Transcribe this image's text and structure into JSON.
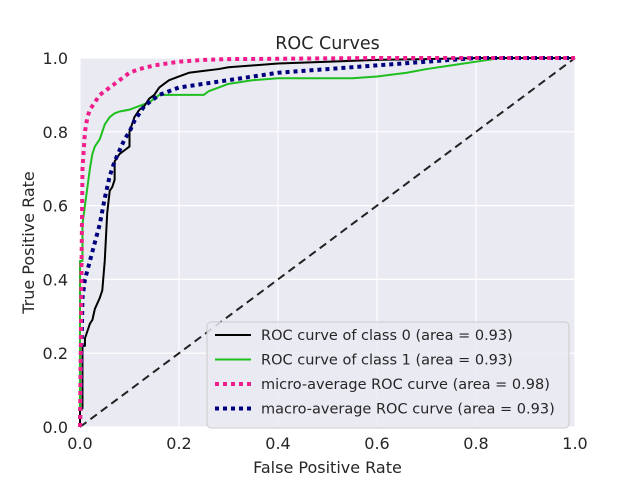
{
  "chart_data": {
    "type": "line",
    "title": "ROC Curves",
    "xlabel": "False Positive Rate",
    "ylabel": "True Positive Rate",
    "xlim": [
      0.0,
      1.0
    ],
    "ylim": [
      0.0,
      1.0
    ],
    "xticks": [
      "0.0",
      "0.2",
      "0.4",
      "0.6",
      "0.8",
      "1.0"
    ],
    "yticks": [
      "0.0",
      "0.2",
      "0.4",
      "0.6",
      "0.8",
      "1.0"
    ],
    "grid": true,
    "background": "#eaeaf2",
    "legend_position": "lower-right",
    "series": [
      {
        "name": "ROC curve of class 0 (area = 0.93)",
        "color": "#000000",
        "style": "solid",
        "x": [
          0.0,
          0.0,
          0.005,
          0.005,
          0.01,
          0.01,
          0.015,
          0.02,
          0.025,
          0.03,
          0.04,
          0.045,
          0.05,
          0.055,
          0.06,
          0.065,
          0.07,
          0.07,
          0.08,
          0.09,
          0.1,
          0.1,
          0.11,
          0.12,
          0.13,
          0.14,
          0.15,
          0.16,
          0.17,
          0.18,
          0.2,
          0.22,
          0.25,
          0.28,
          0.3,
          0.35,
          0.4,
          0.5,
          0.6,
          0.7,
          0.8,
          0.9,
          1.0
        ],
        "y": [
          0.0,
          0.05,
          0.05,
          0.22,
          0.22,
          0.24,
          0.26,
          0.28,
          0.29,
          0.32,
          0.35,
          0.37,
          0.45,
          0.58,
          0.64,
          0.65,
          0.67,
          0.72,
          0.74,
          0.75,
          0.76,
          0.8,
          0.84,
          0.86,
          0.87,
          0.89,
          0.9,
          0.92,
          0.93,
          0.94,
          0.95,
          0.96,
          0.965,
          0.97,
          0.975,
          0.98,
          0.985,
          0.99,
          0.995,
          0.997,
          1.0,
          1.0,
          1.0
        ]
      },
      {
        "name": "ROC curve of class 1 (area = 0.93)",
        "color": "#1fbf1f",
        "style": "solid",
        "x": [
          0.0,
          0.0,
          0.005,
          0.005,
          0.01,
          0.015,
          0.02,
          0.025,
          0.03,
          0.035,
          0.04,
          0.045,
          0.05,
          0.06,
          0.07,
          0.08,
          0.1,
          0.12,
          0.14,
          0.16,
          0.18,
          0.2,
          0.22,
          0.25,
          0.26,
          0.28,
          0.3,
          0.35,
          0.4,
          0.45,
          0.5,
          0.55,
          0.6,
          0.63,
          0.66,
          0.7,
          0.75,
          0.8,
          0.85,
          0.9,
          0.95,
          1.0
        ],
        "y": [
          0.0,
          0.45,
          0.45,
          0.55,
          0.6,
          0.65,
          0.7,
          0.74,
          0.76,
          0.77,
          0.78,
          0.8,
          0.82,
          0.84,
          0.85,
          0.855,
          0.86,
          0.87,
          0.88,
          0.9,
          0.9,
          0.9,
          0.9,
          0.9,
          0.91,
          0.92,
          0.93,
          0.94,
          0.945,
          0.945,
          0.945,
          0.945,
          0.95,
          0.955,
          0.96,
          0.97,
          0.98,
          0.99,
          1.0,
          1.0,
          1.0,
          1.0
        ]
      },
      {
        "name": "micro-average ROC curve (area = 0.98)",
        "color": "#f01e8c",
        "style": "dotted",
        "x": [
          0.0,
          0.005,
          0.01,
          0.015,
          0.02,
          0.03,
          0.04,
          0.05,
          0.06,
          0.07,
          0.08,
          0.1,
          0.12,
          0.15,
          0.2,
          0.25,
          0.3,
          0.4,
          0.5,
          0.6,
          0.8,
          1.0
        ],
        "y": [
          0.0,
          0.7,
          0.8,
          0.84,
          0.86,
          0.88,
          0.9,
          0.91,
          0.92,
          0.93,
          0.94,
          0.96,
          0.97,
          0.98,
          0.99,
          0.995,
          0.997,
          0.998,
          0.999,
          1.0,
          1.0,
          1.0
        ]
      },
      {
        "name": "macro-average ROC curve (area = 0.93)",
        "color": "#00007f",
        "style": "dotted",
        "x": [
          0.0,
          0.005,
          0.01,
          0.02,
          0.03,
          0.04,
          0.05,
          0.06,
          0.07,
          0.08,
          0.09,
          0.1,
          0.11,
          0.12,
          0.13,
          0.14,
          0.15,
          0.16,
          0.18,
          0.2,
          0.25,
          0.3,
          0.35,
          0.4,
          0.5,
          0.6,
          0.7,
          0.8,
          0.9,
          1.0
        ],
        "y": [
          0.0,
          0.35,
          0.4,
          0.45,
          0.5,
          0.55,
          0.62,
          0.68,
          0.72,
          0.75,
          0.78,
          0.8,
          0.83,
          0.85,
          0.87,
          0.88,
          0.89,
          0.9,
          0.91,
          0.92,
          0.93,
          0.94,
          0.95,
          0.96,
          0.97,
          0.98,
          0.99,
          1.0,
          1.0,
          1.0
        ]
      },
      {
        "name": "",
        "color": "#222222",
        "style": "dashed",
        "x": [
          0.0,
          1.0
        ],
        "y": [
          0.0,
          1.0
        ]
      }
    ]
  }
}
